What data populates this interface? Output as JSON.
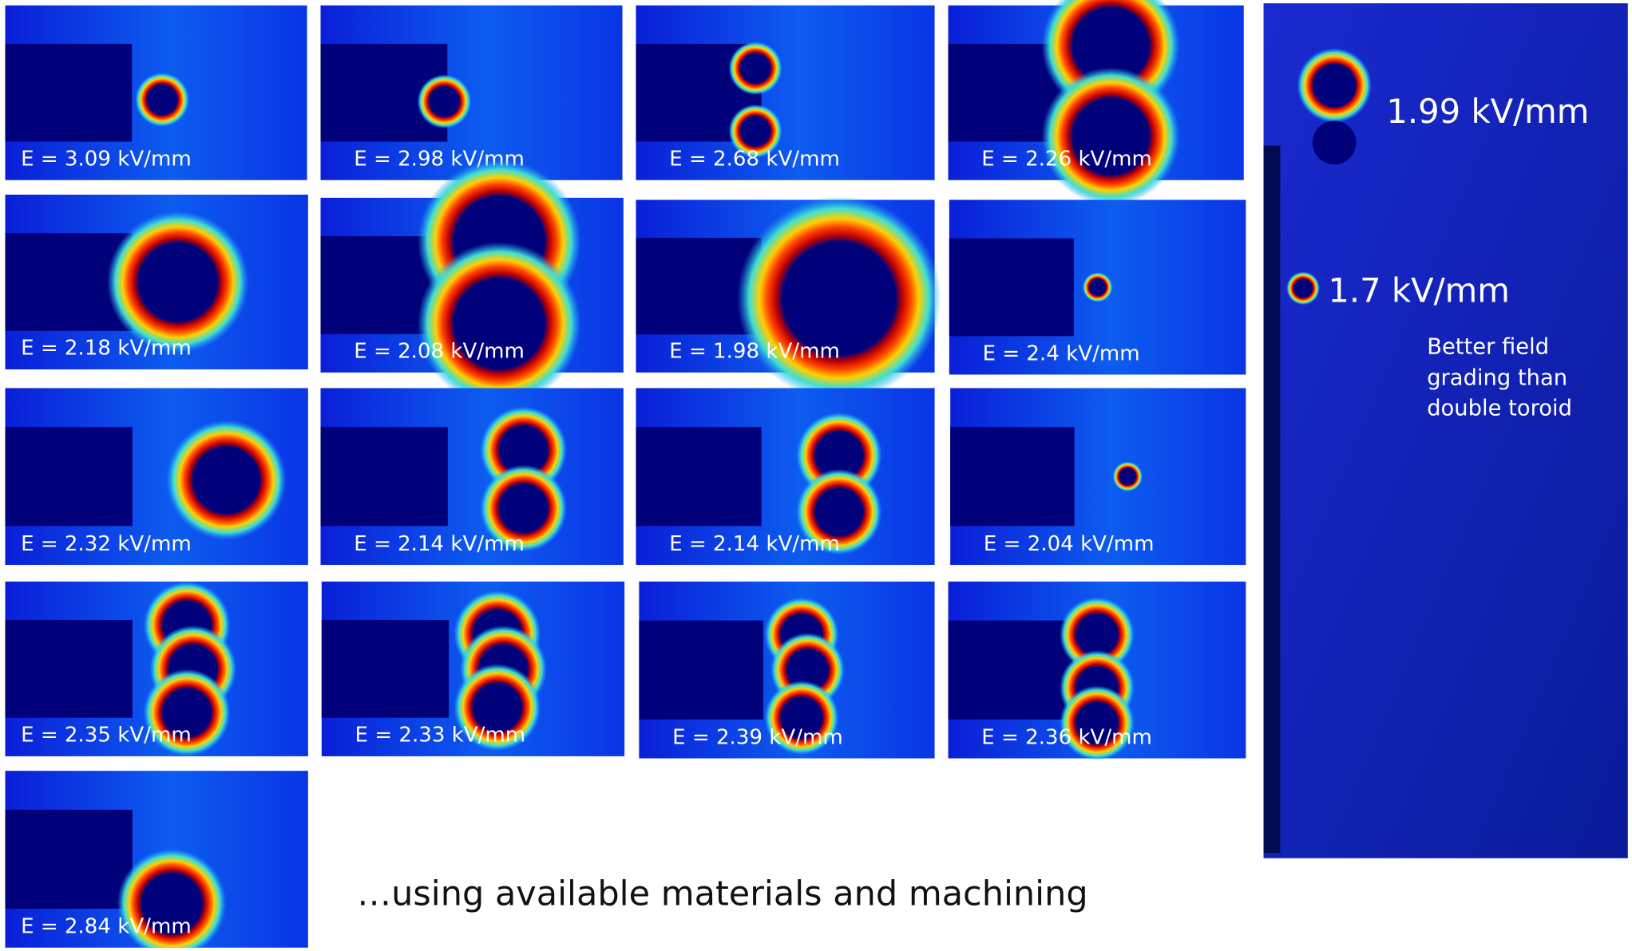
{
  "panels": [
    {
      "label": "E = 3.09 kV/mm"
    },
    {
      "label": "E = 2.98 kV/mm"
    },
    {
      "label": "E = 2.68 kV/mm"
    },
    {
      "label": "E = 2.26 kV/mm"
    },
    {
      "label": "E = 2.18 kV/mm"
    },
    {
      "label": "E = 2.08 kV/mm"
    },
    {
      "label": "E = 1.98 kV/mm"
    },
    {
      "label": "E = 2.4 kV/mm"
    },
    {
      "label": "E = 2.32 kV/mm"
    },
    {
      "label": "E = 2.14 kV/mm"
    },
    {
      "label": "E = 2.14 kV/mm"
    },
    {
      "label": "E = 2.04 kV/mm"
    },
    {
      "label": "E = 2.35 kV/mm"
    },
    {
      "label": "E = 2.33 kV/mm"
    },
    {
      "label": "E = 2.39 kV/mm"
    },
    {
      "label": "E = 2.36 kV/mm"
    },
    {
      "label": "E = 2.84 kV/mm"
    }
  ],
  "right_panel": {
    "top_label": "1.99 kV/mm",
    "middle_label": "1.7 kV/mm",
    "note": [
      "Better field",
      "grading than",
      "double toroid"
    ]
  },
  "caption": "…using available materials and machining"
}
